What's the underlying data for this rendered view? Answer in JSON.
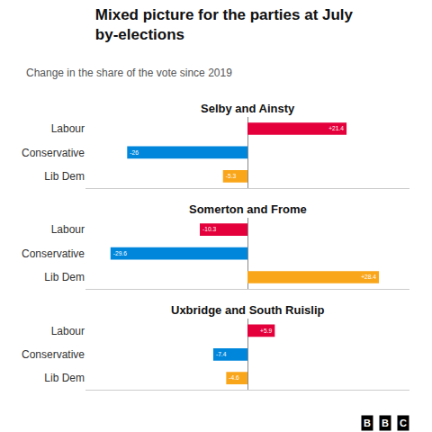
{
  "title": "Mixed picture for the parties at July\nby-elections",
  "subtitle": "Change in the share of the vote since 2019",
  "annotations": [
    "B",
    "B",
    "C"
  ],
  "chart_data": [
    {
      "type": "bar",
      "orientation": "horizontal",
      "title": "Selby and Ainsty",
      "categories": [
        "Labour",
        "Conservative",
        "Lib Dem"
      ],
      "values": [
        21.4,
        -26.0,
        -5.3
      ],
      "value_labels": [
        "+21.4",
        "-26",
        "-5.3"
      ],
      "colors": [
        "#e4003b",
        "#0087dc",
        "#faa61a"
      ],
      "data_labels": true,
      "xlim": [
        -35,
        35
      ],
      "grid": false,
      "tick_labels": "y"
    },
    {
      "type": "bar",
      "orientation": "horizontal",
      "title": "Somerton and Frome",
      "categories": [
        "Labour",
        "Conservative",
        "Lib Dem"
      ],
      "values": [
        -10.3,
        -29.6,
        28.4
      ],
      "value_labels": [
        "-10.3",
        "-29.6",
        "+28.4"
      ],
      "colors": [
        "#e4003b",
        "#0087dc",
        "#faa61a"
      ],
      "data_labels": true,
      "xlim": [
        -35,
        35
      ],
      "grid": false,
      "tick_labels": "y"
    },
    {
      "type": "bar",
      "orientation": "horizontal",
      "title": "Uxbridge and South Ruislip",
      "categories": [
        "Labour",
        "Conservative",
        "Lib Dem"
      ],
      "values": [
        5.9,
        -7.4,
        -4.6
      ],
      "value_labels": [
        "+5.9",
        "-7.4",
        "-4.6"
      ],
      "colors": [
        "#e4003b",
        "#0087dc",
        "#faa61a"
      ],
      "data_labels": true,
      "xlim": [
        -35,
        35
      ],
      "grid": false,
      "tick_labels": "y"
    }
  ]
}
